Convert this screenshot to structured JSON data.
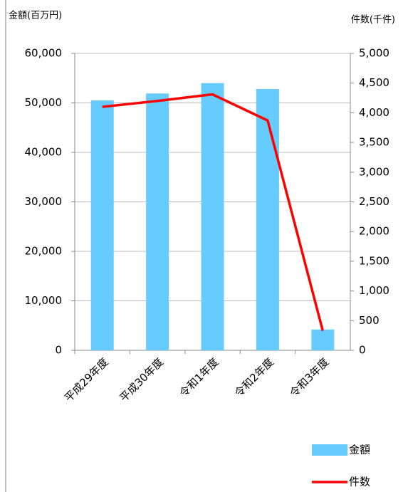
{
  "chart_data": {
    "type": "bar",
    "y_label": "金額(百万円)",
    "y2_label": "件数(千件)",
    "categories": [
      "平成29年度",
      "平成30年度",
      "令和1年度",
      "令和2年度",
      "令和3年度"
    ],
    "series": [
      {
        "name": "金額",
        "type": "bar",
        "color": "#66ccff",
        "values": [
          50500,
          51900,
          54000,
          52800,
          4200
        ]
      },
      {
        "name": "件数",
        "type": "line",
        "color": "#ff0000",
        "axis": "y2",
        "values": [
          4100,
          4200,
          4310,
          3870,
          330
        ]
      }
    ],
    "ylim": [
      0,
      60000
    ],
    "yticks": [
      {
        "value": 0,
        "label": "0"
      },
      {
        "value": 10000,
        "label": "10,000"
      },
      {
        "value": 20000,
        "label": "20,000"
      },
      {
        "value": 30000,
        "label": "30,000"
      },
      {
        "value": 40000,
        "label": "40,000"
      },
      {
        "value": 50000,
        "label": "50,000"
      },
      {
        "value": 60000,
        "label": "60,000"
      }
    ],
    "y2lim": [
      0,
      5000
    ],
    "y2ticks": [
      {
        "value": 0,
        "label": "0"
      },
      {
        "value": 500,
        "label": "500"
      },
      {
        "value": 1000,
        "label": "1,000"
      },
      {
        "value": 1500,
        "label": "1,500"
      },
      {
        "value": 2000,
        "label": "2,000"
      },
      {
        "value": 2500,
        "label": "2,500"
      },
      {
        "value": 3000,
        "label": "3,000"
      },
      {
        "value": 3500,
        "label": "3,500"
      },
      {
        "value": 4000,
        "label": "4,000"
      },
      {
        "value": 4500,
        "label": "4,500"
      },
      {
        "value": 5000,
        "label": "5,000"
      }
    ],
    "grid": true
  }
}
